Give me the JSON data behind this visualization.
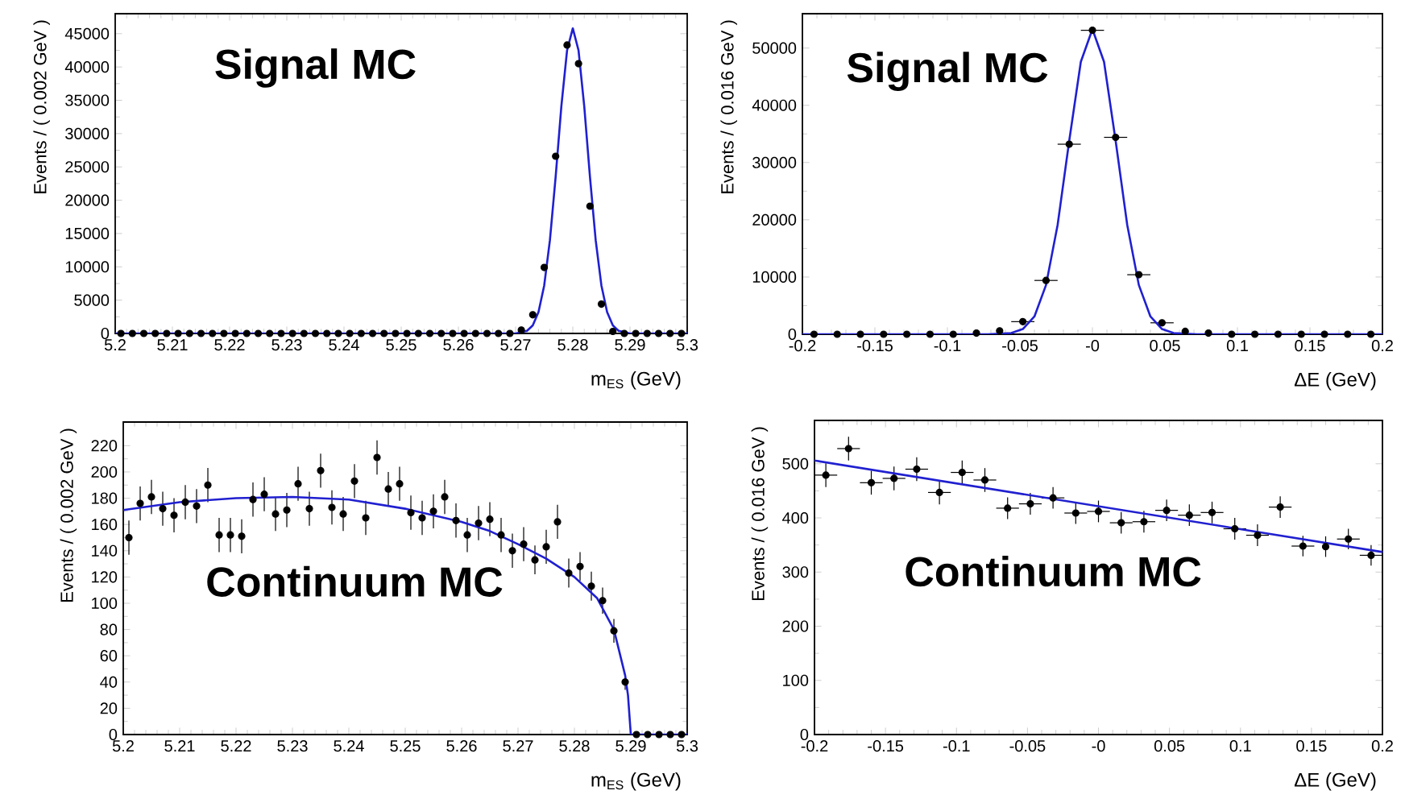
{
  "chart_data": [
    {
      "type": "scatter",
      "xlabel": "m$_{ES}$ (GeV)",
      "ylabel": "Events / ( 0.002 GeV )",
      "annotations": [
        "Signal MC"
      ],
      "xlim": [
        5.2,
        5.3
      ],
      "ylim": [
        0,
        48000
      ],
      "xticks": [
        5.2,
        5.21,
        5.22,
        5.23,
        5.24,
        5.25,
        5.26,
        5.27,
        5.28,
        5.29,
        5.3
      ],
      "yticks": [
        0,
        5000,
        10000,
        15000,
        20000,
        25000,
        30000,
        35000,
        40000,
        45000
      ],
      "series": [
        {
          "type": "scatter",
          "marker": "circle",
          "color": "#000000",
          "x": [
            5.201,
            5.203,
            5.205,
            5.207,
            5.209,
            5.211,
            5.213,
            5.215,
            5.217,
            5.219,
            5.221,
            5.223,
            5.225,
            5.227,
            5.229,
            5.231,
            5.233,
            5.235,
            5.237,
            5.239,
            5.241,
            5.243,
            5.245,
            5.247,
            5.249,
            5.251,
            5.253,
            5.255,
            5.257,
            5.259,
            5.261,
            5.263,
            5.265,
            5.267,
            5.269,
            5.271,
            5.273,
            5.275,
            5.277,
            5.279,
            5.281,
            5.283,
            5.285,
            5.287,
            5.289,
            5.291,
            5.293,
            5.295,
            5.297,
            5.299
          ],
          "values": [
            0,
            0,
            0,
            0,
            0,
            0,
            0,
            0,
            0,
            0,
            0,
            0,
            0,
            0,
            0,
            0,
            0,
            0,
            0,
            0,
            0,
            0,
            0,
            0,
            0,
            0,
            0,
            0,
            0,
            0,
            0,
            0,
            0,
            0,
            0,
            500,
            2800,
            9900,
            26600,
            43300,
            40500,
            19100,
            4400,
            300,
            0,
            0,
            0,
            0,
            0,
            0
          ]
        },
        {
          "type": "line",
          "color": "#2020d0",
          "x": [
            5.2,
            5.27,
            5.272,
            5.273,
            5.274,
            5.275,
            5.276,
            5.277,
            5.278,
            5.279,
            5.28,
            5.281,
            5.282,
            5.283,
            5.284,
            5.285,
            5.286,
            5.287,
            5.288,
            5.29,
            5.3
          ],
          "values": [
            0,
            0,
            400,
            1200,
            3200,
            7200,
            14000,
            23500,
            34100,
            42500,
            45800,
            42500,
            34100,
            23500,
            14000,
            7200,
            3200,
            1200,
            400,
            0,
            0
          ]
        }
      ]
    },
    {
      "type": "scatter",
      "xlabel": "ΔE (GeV)",
      "ylabel": "Events / ( 0.016 GeV )",
      "annotations": [
        "Signal MC"
      ],
      "xlim": [
        -0.2,
        0.2
      ],
      "ylim": [
        0,
        56000
      ],
      "xticks": [
        -0.2,
        -0.15,
        -0.1,
        -0.05,
        {
          "value": 0,
          "label": "-0"
        },
        0.05,
        0.1,
        0.15,
        0.2
      ],
      "yticks": [
        0,
        10000,
        20000,
        30000,
        40000,
        50000
      ],
      "series": [
        {
          "type": "scatter",
          "marker": "circle",
          "color": "#000000",
          "x": [
            -0.192,
            -0.176,
            -0.16,
            -0.144,
            -0.128,
            -0.112,
            -0.096,
            -0.08,
            -0.064,
            -0.048,
            -0.032,
            -0.016,
            0,
            0.016,
            0.032,
            0.048,
            0.064,
            0.08,
            0.096,
            0.112,
            0.128,
            0.144,
            0.16,
            0.176,
            0.192
          ],
          "values": [
            0,
            0,
            0,
            0,
            0,
            0,
            0,
            200,
            600,
            2200,
            9400,
            33200,
            53100,
            34400,
            10400,
            2000,
            500,
            200,
            0,
            0,
            0,
            0,
            0,
            0,
            0
          ],
          "xerrors": [
            null,
            null,
            null,
            null,
            null,
            null,
            null,
            null,
            null,
            0.008,
            0.008,
            0.008,
            0.008,
            0.008,
            0.008,
            0.008,
            null,
            null,
            null,
            null,
            null,
            null,
            null,
            null,
            null
          ]
        },
        {
          "type": "line",
          "color": "#2020d0",
          "x": [
            -0.2,
            -0.072,
            -0.056,
            -0.048,
            -0.04,
            -0.032,
            -0.024,
            -0.016,
            -0.008,
            0,
            0.008,
            0.016,
            0.024,
            0.032,
            0.04,
            0.048,
            0.056,
            0.072,
            0.2
          ],
          "values": [
            0,
            0,
            200,
            900,
            3100,
            8600,
            19100,
            33800,
            47600,
            53300,
            47600,
            33800,
            19100,
            8600,
            3100,
            900,
            200,
            0,
            0
          ]
        }
      ]
    },
    {
      "type": "scatter",
      "xlabel": "m$_{ES}$ (GeV)",
      "ylabel": "Events / ( 0.002 GeV )",
      "annotations": [
        "Continuum MC"
      ],
      "xlim": [
        5.2,
        5.3
      ],
      "ylim": [
        0,
        238
      ],
      "xticks": [
        5.2,
        5.21,
        5.22,
        5.23,
        5.24,
        5.25,
        5.26,
        5.27,
        5.28,
        5.29,
        5.3
      ],
      "yticks": [
        0,
        20,
        40,
        60,
        80,
        100,
        120,
        140,
        160,
        180,
        200,
        220
      ],
      "series": [
        {
          "type": "scatter",
          "marker": "circle",
          "color": "#000000",
          "x": [
            5.201,
            5.203,
            5.205,
            5.207,
            5.209,
            5.211,
            5.213,
            5.215,
            5.217,
            5.219,
            5.221,
            5.223,
            5.225,
            5.227,
            5.229,
            5.231,
            5.233,
            5.235,
            5.237,
            5.239,
            5.241,
            5.243,
            5.245,
            5.247,
            5.249,
            5.251,
            5.253,
            5.255,
            5.257,
            5.259,
            5.261,
            5.263,
            5.265,
            5.267,
            5.269,
            5.271,
            5.273,
            5.275,
            5.277,
            5.279,
            5.281,
            5.283,
            5.285,
            5.287,
            5.289,
            5.291,
            5.293,
            5.295,
            5.297,
            5.299
          ],
          "values": [
            150,
            176,
            181,
            172,
            167,
            177,
            174,
            190,
            152,
            152,
            151,
            179,
            183,
            168,
            171,
            191,
            172,
            201,
            173,
            168,
            193,
            165,
            211,
            187,
            191,
            169,
            165,
            170,
            181,
            163,
            152,
            161,
            164,
            152,
            140,
            145,
            133,
            143,
            162,
            123,
            128,
            113,
            102,
            79,
            40,
            0,
            0,
            0,
            0,
            0
          ],
          "errors": [
            13,
            13,
            13,
            13,
            13,
            13,
            13,
            13,
            13,
            13,
            13,
            13,
            13,
            13,
            13,
            13,
            13,
            13,
            13,
            13,
            13,
            13,
            13,
            13,
            13,
            13,
            13,
            13,
            13,
            13,
            13,
            13,
            13,
            13,
            13,
            13,
            11,
            13,
            13,
            11,
            11,
            11,
            10,
            9,
            6,
            null,
            null,
            null,
            null,
            null
          ]
        },
        {
          "type": "line",
          "color": "#2020d0",
          "x": [
            5.2,
            5.21,
            5.22,
            5.23,
            5.24,
            5.25,
            5.26,
            5.265,
            5.27,
            5.275,
            5.28,
            5.284,
            5.287,
            5.289,
            5.2895,
            5.29,
            5.3
          ],
          "values": [
            171,
            177,
            180,
            181,
            179,
            172,
            162,
            155,
            145,
            134,
            120,
            104,
            80,
            45,
            30,
            0,
            0
          ]
        }
      ]
    },
    {
      "type": "scatter",
      "xlabel": "ΔE (GeV)",
      "ylabel": "Events / ( 0.016 GeV )",
      "annotations": [
        "Continuum MC"
      ],
      "xlim": [
        -0.2,
        0.2
      ],
      "ylim": [
        0,
        580
      ],
      "xticks": [
        -0.2,
        -0.15,
        -0.1,
        -0.05,
        {
          "value": 0,
          "label": "-0"
        },
        0.05,
        0.1,
        0.15,
        0.2
      ],
      "yticks": [
        0,
        100,
        200,
        300,
        400,
        500
      ],
      "series": [
        {
          "type": "scatter",
          "marker": "circle",
          "color": "#000000",
          "x": [
            -0.192,
            -0.176,
            -0.16,
            -0.144,
            -0.128,
            -0.112,
            -0.096,
            -0.08,
            -0.064,
            -0.048,
            -0.032,
            -0.016,
            0,
            0.016,
            0.032,
            0.048,
            0.064,
            0.08,
            0.096,
            0.112,
            0.128,
            0.144,
            0.16,
            0.176,
            0.192
          ],
          "values": [
            479,
            528,
            465,
            473,
            490,
            447,
            484,
            470,
            418,
            426,
            437,
            409,
            412,
            391,
            393,
            414,
            405,
            410,
            380,
            368,
            420,
            348,
            347,
            361,
            331
          ],
          "errors": [
            22,
            22,
            22,
            22,
            22,
            22,
            22,
            22,
            20,
            20,
            20,
            20,
            20,
            20,
            20,
            20,
            20,
            20,
            20,
            20,
            20,
            19,
            19,
            19,
            19
          ],
          "xerrors": [
            0.008,
            0.008,
            0.008,
            0.008,
            0.008,
            0.008,
            0.008,
            0.008,
            0.008,
            0.008,
            0.008,
            0.008,
            0.008,
            0.008,
            0.008,
            0.008,
            0.008,
            0.008,
            0.008,
            0.008,
            0.008,
            0.008,
            null,
            0.008,
            0.008
          ]
        },
        {
          "type": "line",
          "color": "#2020d0",
          "x": [
            -0.2,
            0.2
          ],
          "values": [
            506,
            337
          ]
        }
      ]
    }
  ]
}
